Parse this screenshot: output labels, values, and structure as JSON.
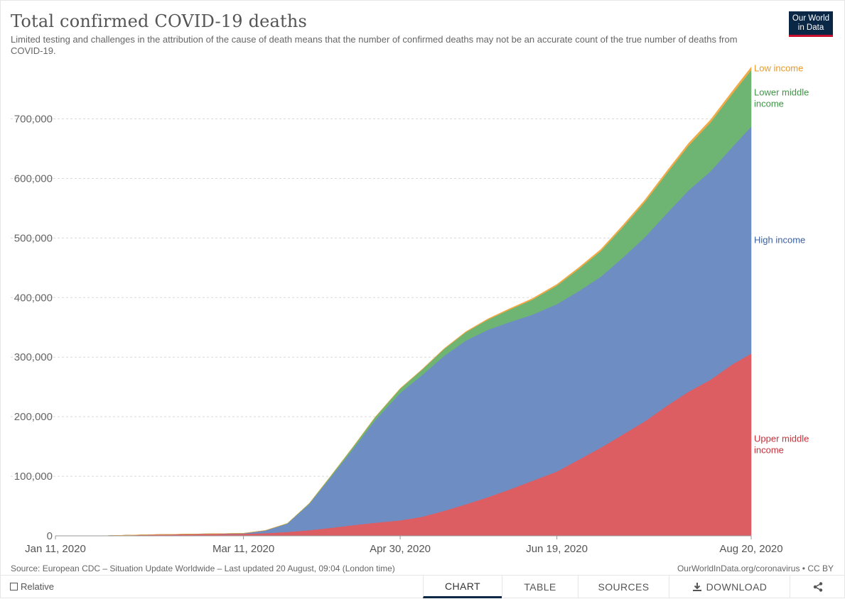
{
  "header": {
    "title": "Total confirmed COVID-19 deaths",
    "subtitle": "Limited testing and challenges in the attribution of the cause of death means that the number of confirmed deaths may not be an accurate count of the true number of deaths from COVID-19.",
    "logo_line1": "Our World",
    "logo_line2": "in Data"
  },
  "footer": {
    "source": "Source: European CDC – Situation Update Worldwide – Last updated 20 August, 09:04 (London time)",
    "credit": "OurWorldInData.org/coronavirus • CC BY"
  },
  "controls": {
    "relative_label": "Relative",
    "tabs": [
      "CHART",
      "TABLE",
      "SOURCES",
      "DOWNLOAD"
    ],
    "share_icon": "share-icon",
    "download_icon": "download-icon"
  },
  "colors": {
    "upper_middle": "#dc5e63",
    "high": "#6d8dc3",
    "lower_middle": "#6eb573",
    "low": "#f0a945",
    "upper_middle_text": "#c8303a",
    "high_text": "#3b5fa0",
    "lower_middle_text": "#3e9645",
    "low_text": "#e69a2a"
  },
  "chart_data": {
    "type": "area",
    "stacked": true,
    "title": "Total confirmed COVID-19 deaths",
    "x_tick_labels": [
      "Jan 11, 2020",
      "Mar 11, 2020",
      "Apr 30, 2020",
      "Jun 19, 2020",
      "Aug 20, 2020"
    ],
    "y_tick_labels": [
      "0",
      "100,000",
      "200,000",
      "300,000",
      "400,000",
      "500,000",
      "600,000",
      "700,000"
    ],
    "ylim": [
      0,
      790000
    ],
    "grid": true,
    "legend_placement": "right, inline at series ends",
    "x": [
      "2020-01-11",
      "2020-01-26",
      "2020-02-10",
      "2020-02-25",
      "2020-03-11",
      "2020-03-18",
      "2020-03-25",
      "2020-04-01",
      "2020-04-08",
      "2020-04-15",
      "2020-04-22",
      "2020-04-30",
      "2020-05-07",
      "2020-05-14",
      "2020-05-21",
      "2020-05-28",
      "2020-06-04",
      "2020-06-11",
      "2020-06-19",
      "2020-06-26",
      "2020-07-03",
      "2020-07-10",
      "2020-07-17",
      "2020-07-24",
      "2020-07-31",
      "2020-08-07",
      "2020-08-14",
      "2020-08-20"
    ],
    "series": [
      {
        "name": "Upper middle income",
        "values": [
          0,
          100,
          2000,
          3000,
          3500,
          4500,
          6500,
          9500,
          13500,
          18000,
          22000,
          26000,
          32000,
          42000,
          53000,
          65000,
          78000,
          92000,
          108000,
          128000,
          148000,
          170000,
          192000,
          218000,
          242000,
          262000,
          288000,
          306000
        ]
      },
      {
        "name": "High income",
        "values": [
          0,
          0,
          0,
          200,
          800,
          4500,
          14000,
          44000,
          86000,
          128000,
          172000,
          214000,
          238000,
          260000,
          275000,
          281000,
          281000,
          279000,
          281000,
          283000,
          287000,
          297000,
          309000,
          323000,
          338000,
          350000,
          365000,
          381000
        ]
      },
      {
        "name": "Lower middle income",
        "values": [
          0,
          0,
          0,
          0,
          30,
          150,
          400,
          1000,
          2000,
          3500,
          5000,
          7000,
          9000,
          11500,
          14000,
          17000,
          21000,
          25000,
          31000,
          37000,
          43000,
          51000,
          59000,
          67000,
          75000,
          82000,
          89000,
          95000
        ]
      },
      {
        "name": "Low income",
        "values": [
          0,
          0,
          0,
          0,
          5,
          20,
          50,
          100,
          200,
          300,
          400,
          500,
          700,
          900,
          1100,
          1400,
          1700,
          2000,
          2300,
          2600,
          2900,
          3200,
          3500,
          3800,
          4100,
          4400,
          4700,
          5000
        ]
      }
    ]
  }
}
